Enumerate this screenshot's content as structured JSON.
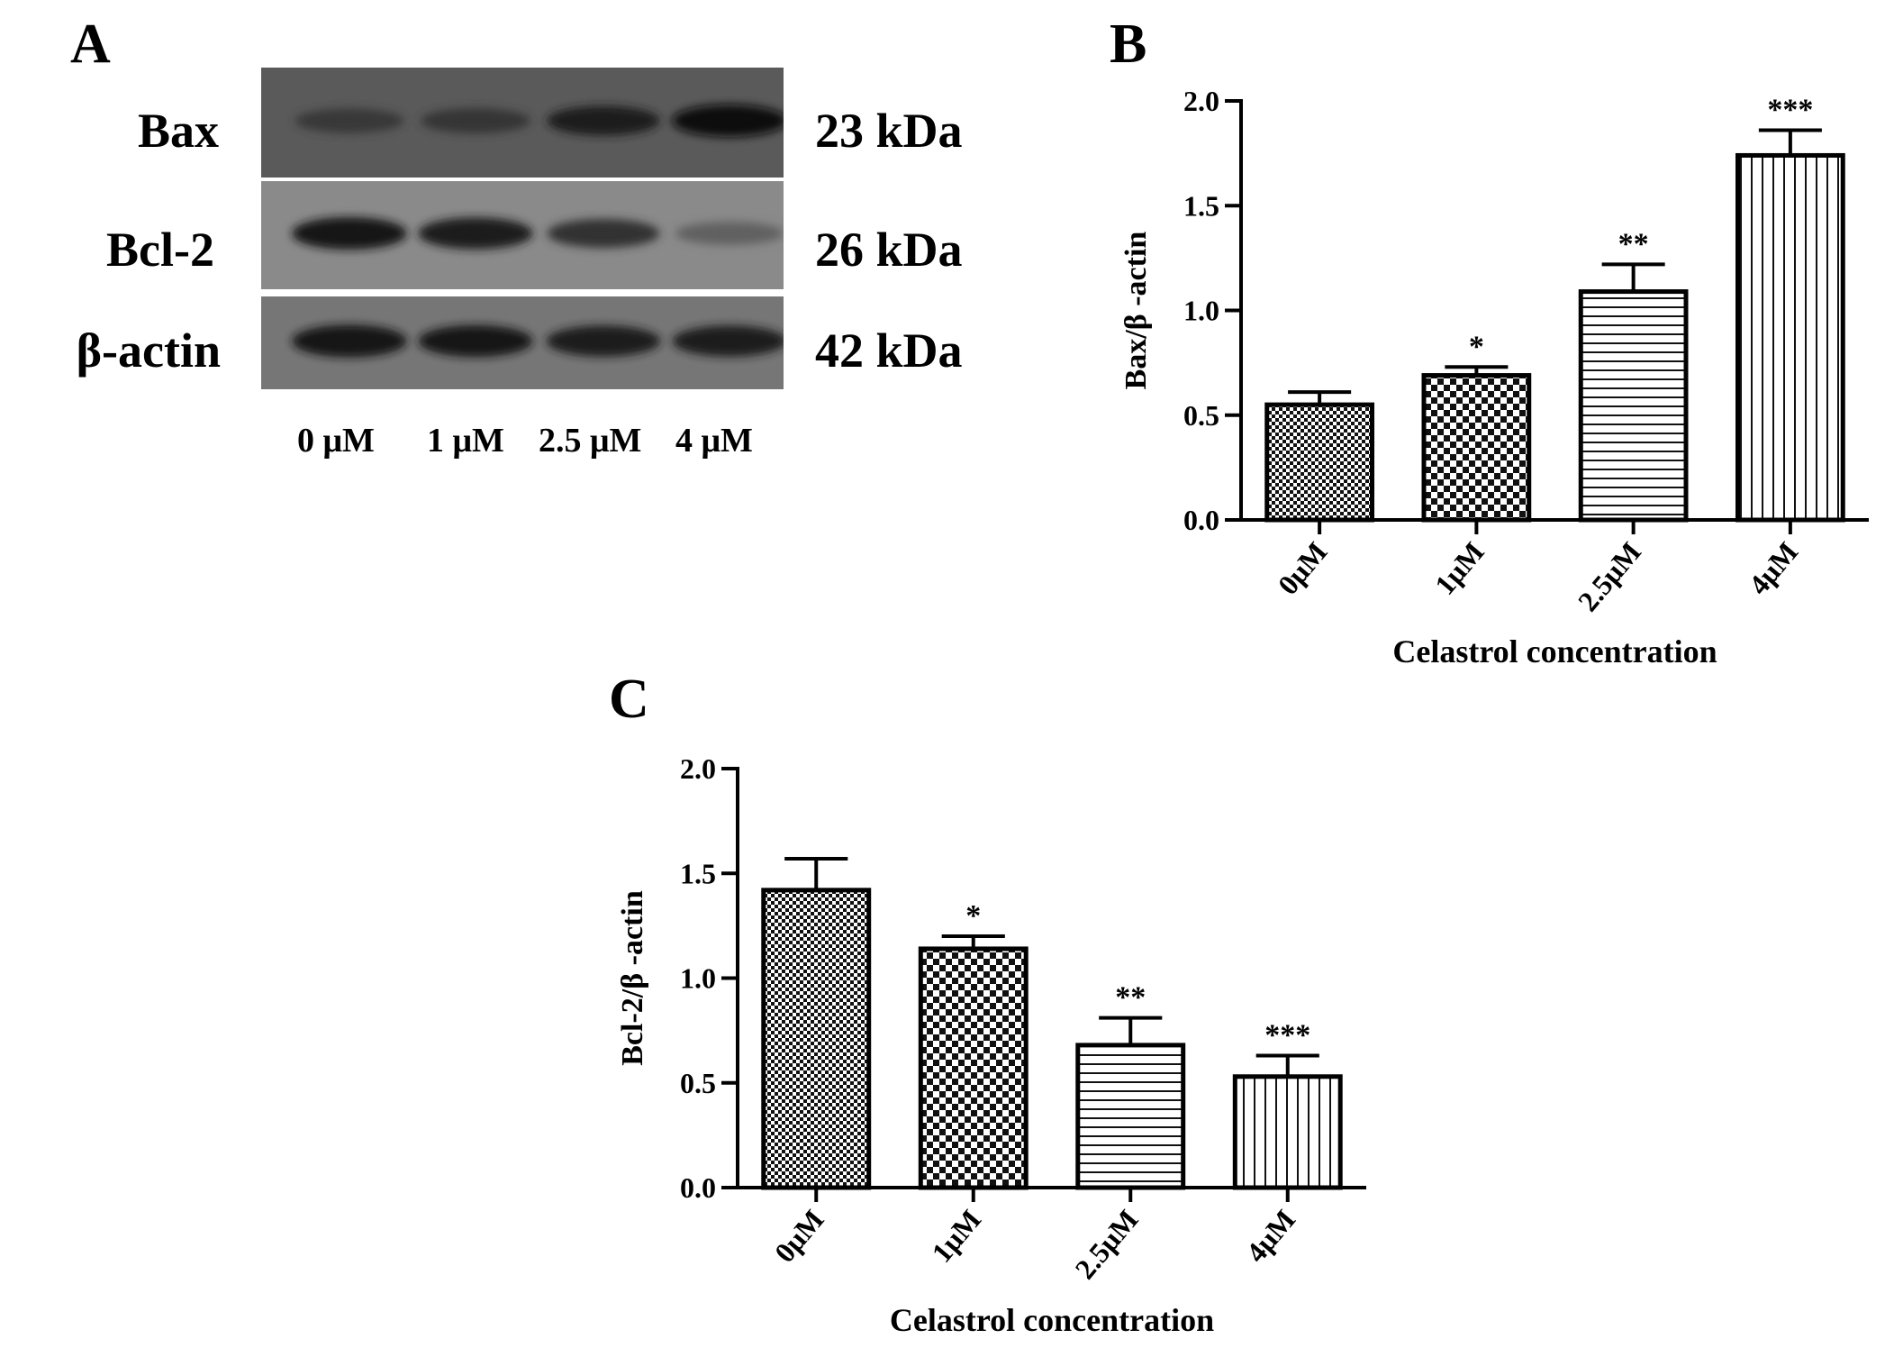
{
  "panels": {
    "a": "A",
    "b": "B",
    "c": "C"
  },
  "blot": {
    "rows": [
      {
        "protein": "Bax",
        "size": "23 kDa",
        "band_intensity": [
          0.45,
          0.5,
          0.8,
          1.0
        ]
      },
      {
        "protein": "Bcl-2",
        "size": "26 kDa",
        "band_intensity": [
          1.0,
          0.95,
          0.75,
          0.35
        ]
      },
      {
        "protein": "β-actin",
        "size": "42 kDa",
        "band_intensity": [
          1.0,
          0.95,
          0.9,
          0.9
        ]
      }
    ],
    "lanes": [
      "0 μM",
      "1 μM",
      "2.5 μM",
      "4 μM"
    ]
  },
  "chart_data": [
    {
      "id": "B",
      "type": "bar",
      "categories": [
        "0μM",
        "1μM",
        "2.5μM",
        "4μM"
      ],
      "values": [
        0.55,
        0.69,
        1.09,
        1.74
      ],
      "errors": [
        0.06,
        0.04,
        0.13,
        0.12
      ],
      "significance": [
        "",
        "*",
        "**",
        "***"
      ],
      "patterns": [
        "fine-checker",
        "checker",
        "horizontal-lines",
        "vertical-lines"
      ],
      "xlabel": "Celastrol concentration",
      "ylabel": "Bax/β -actin",
      "ylim": [
        0,
        2.0
      ],
      "yticks": [
        "0.0",
        "0.5",
        "1.0",
        "1.5",
        "2.0"
      ]
    },
    {
      "id": "C",
      "type": "bar",
      "categories": [
        "0μM",
        "1μM",
        "2.5μM",
        "4μM"
      ],
      "values": [
        1.42,
        1.14,
        0.68,
        0.53
      ],
      "errors": [
        0.15,
        0.06,
        0.13,
        0.1
      ],
      "significance": [
        "",
        "*",
        "**",
        "***"
      ],
      "patterns": [
        "fine-checker",
        "checker",
        "horizontal-lines",
        "vertical-lines"
      ],
      "xlabel": "Celastrol concentration",
      "ylabel": "Bcl-2/β -actin",
      "ylim": [
        0,
        2.0
      ],
      "yticks": [
        "0.0",
        "0.5",
        "1.0",
        "1.5",
        "2.0"
      ]
    }
  ]
}
